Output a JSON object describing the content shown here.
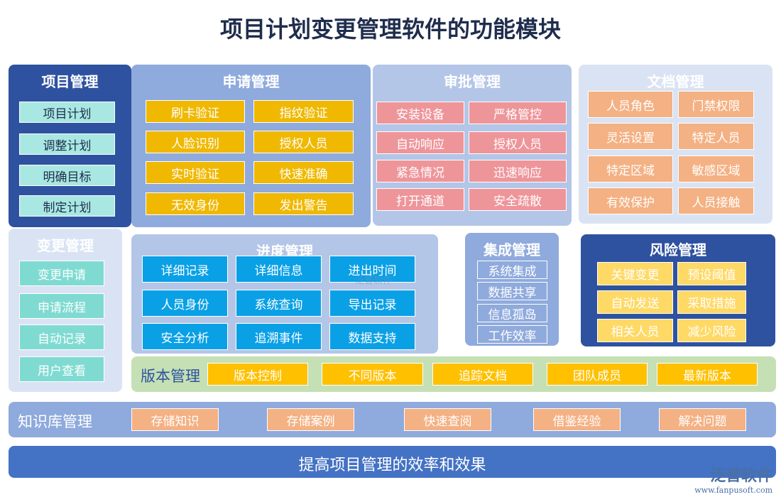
{
  "title": "项目计划变更管理软件的功能模块",
  "colors": {
    "dark_blue": "#2e52a0",
    "mid_blue": "#8faadc",
    "light_blue": "#b4c6e7",
    "pale_blue": "#dae3f3",
    "cyan": "#a9e8e2",
    "gold": "#f0b800",
    "pink": "#ee959a",
    "peach": "#f4b183",
    "sky": "#0aa0e6",
    "yellow": "#ffd966",
    "green": "#c5e0b4",
    "orange": "#ffc000",
    "footer": "#4472c4"
  },
  "modules": {
    "project": {
      "title": "项目管理",
      "items": [
        "项目计划",
        "调整计划",
        "明确目标",
        "制定计划"
      ]
    },
    "apply": {
      "title": "申请管理",
      "items": [
        "刷卡验证",
        "指纹验证",
        "人脸识别",
        "授权人员",
        "实时验证",
        "快速准确",
        "无效身份",
        "发出警告"
      ]
    },
    "approve": {
      "title": "审批管理",
      "items": [
        "安装设备",
        "严格管控",
        "自动响应",
        "授权人员",
        "紧急情况",
        "迅速响应",
        "打开通道",
        "安全疏散"
      ]
    },
    "docs": {
      "title": "文档管理",
      "items": [
        "人员角色",
        "门禁权限",
        "灵活设置",
        "特定人员",
        "特定区域",
        "敏感区域",
        "有效保护",
        "人员接触"
      ]
    },
    "change": {
      "title": "变更管理",
      "items": [
        "变更申请",
        "申请流程",
        "自动记录",
        "用户查看"
      ]
    },
    "progress": {
      "title": "进度管理",
      "items": [
        "详细记录",
        "详细信息",
        "进出时间",
        "人员身份",
        "系统查询",
        "导出记录",
        "安全分析",
        "追溯事件",
        "数据支持"
      ]
    },
    "integration": {
      "title": "集成管理",
      "items": [
        "系统集成",
        "数据共享",
        "信息孤岛",
        "工作效率"
      ]
    },
    "risk": {
      "title": "风险管理",
      "items": [
        "关键变更",
        "预设阈值",
        "自动发送",
        "采取措施",
        "相关人员",
        "减少风险"
      ]
    },
    "version": {
      "title": "版本管理",
      "items": [
        "版本控制",
        "不同版本",
        "追踪文档",
        "团队成员",
        "最新版本"
      ]
    },
    "knowledge": {
      "title": "知识库管理",
      "items": [
        "存储知识",
        "存储案例",
        "快速查阅",
        "借鉴经验",
        "解决问题"
      ]
    }
  },
  "footer": "提高项目管理的效率和效果",
  "logo": {
    "name": "泛普软件",
    "url": "www.fanpusoft.com"
  },
  "watermark": "泛普软件"
}
